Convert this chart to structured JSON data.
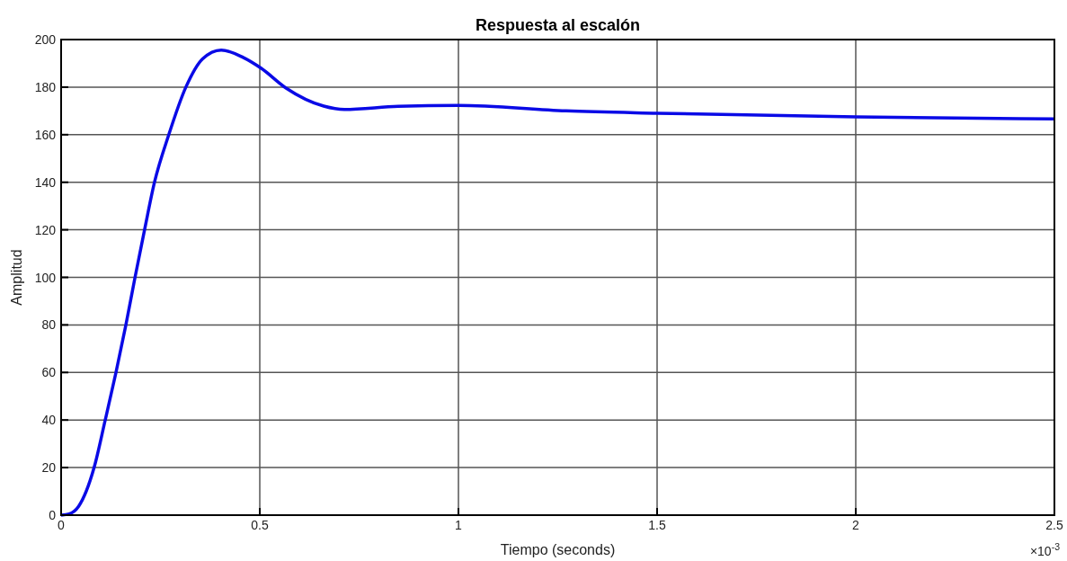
{
  "chart_data": {
    "type": "line",
    "title": "Respuesta al escalón",
    "xlabel": "Tiempo (seconds)",
    "ylabel": "Amplitud",
    "x": [
      0,
      0.02,
      0.044,
      0.083,
      0.111,
      0.138,
      0.163,
      0.186,
      0.21,
      0.235,
      0.271,
      0.314,
      0.356,
      0.403,
      0.458,
      0.503,
      0.567,
      0.661,
      0.713,
      0.848,
      1,
      1.271,
      1.5,
      2,
      2.5
    ],
    "series": [
      {
        "color": "#0a0ae6",
        "values": [
          0,
          0.5,
          3.7,
          20,
          40,
          60,
          80,
          100,
          120,
          140,
          160,
          180,
          191.9,
          195.6,
          192.5,
          188,
          179.5,
          172,
          170.6,
          171.9,
          172.3,
          170,
          169,
          167.5,
          166.6
        ]
      }
    ],
    "xlim": [
      0,
      2.5
    ],
    "xticks": [
      0,
      0.5,
      1,
      1.5,
      2,
      2.5
    ],
    "ylim": [
      0,
      200
    ],
    "yticks": [
      0,
      20,
      40,
      60,
      80,
      100,
      120,
      140,
      160,
      180,
      200
    ],
    "annotations": [
      "×10$^{-3}$"
    ],
    "grid": true,
    "marker": "none",
    "line_style": "solid"
  }
}
